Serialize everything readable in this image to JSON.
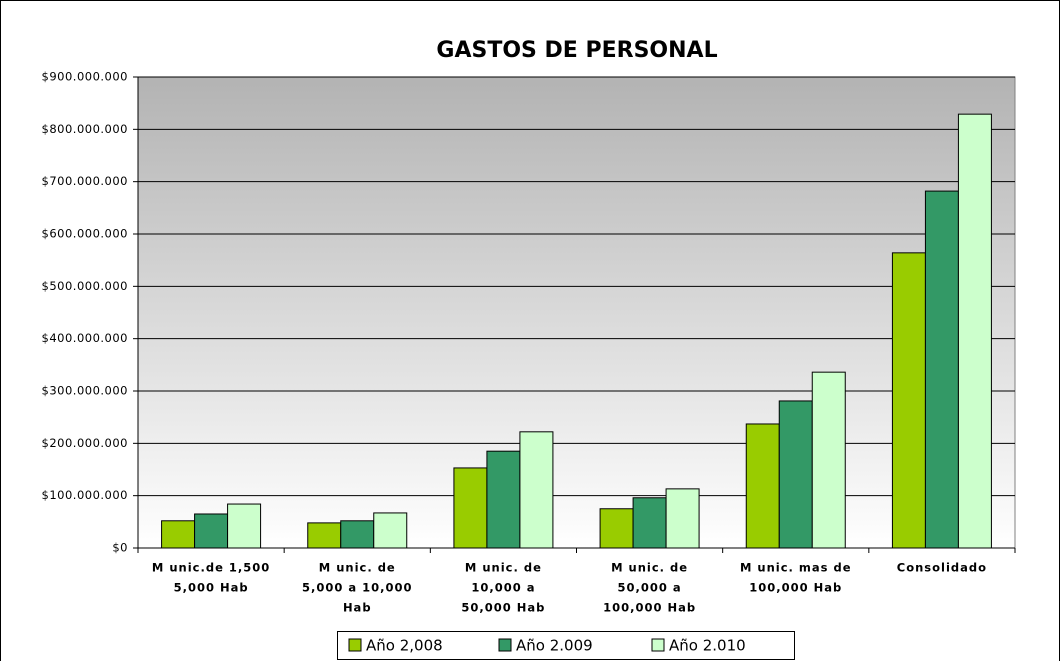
{
  "chart_data": {
    "type": "bar",
    "title": "GASTOS DE PERSONAL",
    "categories": [
      [
        "M unic.de 1,500",
        "5,000 Hab"
      ],
      [
        "M unic. de",
        "5,000 a 10,000",
        "Hab"
      ],
      [
        "M unic. de",
        "10,000 a",
        "50,000 Hab"
      ],
      [
        "M unic. de",
        "50,000 a",
        "100,000 Hab"
      ],
      [
        "M unic.  mas de",
        "100,000 Hab"
      ],
      [
        "Consolidado"
      ]
    ],
    "series": [
      {
        "name": "Año 2,008",
        "color": "#99cc00",
        "values": [
          52000000,
          48000000,
          153000000,
          75000000,
          237000000,
          564000000
        ]
      },
      {
        "name": "Año 2.009",
        "color": "#339966",
        "values": [
          65000000,
          52000000,
          185000000,
          96000000,
          281000000,
          682000000
        ]
      },
      {
        "name": "Año 2.010",
        "color": "#ccffcc",
        "values": [
          84000000,
          67000000,
          222000000,
          113000000,
          336000000,
          829000000
        ]
      }
    ],
    "ylim": [
      0,
      900000000
    ],
    "yticks": [
      {
        "value": 0,
        "label": "$0"
      },
      {
        "value": 100000000,
        "label": "$100.000.000"
      },
      {
        "value": 200000000,
        "label": "$200.000.000"
      },
      {
        "value": 300000000,
        "label": "$300.000.000"
      },
      {
        "value": 400000000,
        "label": "$400.000.000"
      },
      {
        "value": 500000000,
        "label": "$500.000.000"
      },
      {
        "value": 600000000,
        "label": "$600.000.000"
      },
      {
        "value": 700000000,
        "label": "$700.000.000"
      },
      {
        "value": 800000000,
        "label": "$800.000.000"
      },
      {
        "value": 900000000,
        "label": "$900.000.000"
      }
    ],
    "grid": true,
    "legend": "bottom"
  }
}
